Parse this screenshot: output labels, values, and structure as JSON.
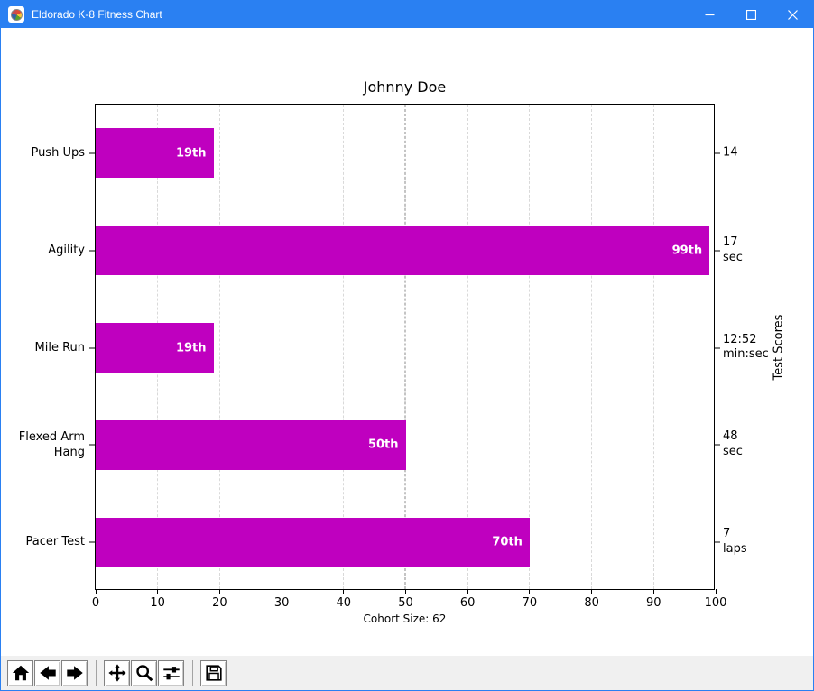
{
  "window": {
    "title": "Eldorado K-8 Fitness Chart",
    "icon": "matplotlib-logo",
    "controls": [
      {
        "name": "minimize"
      },
      {
        "name": "maximize"
      },
      {
        "name": "close"
      }
    ]
  },
  "chart_data": {
    "type": "bar",
    "orientation": "horizontal",
    "title": "Johnny Doe",
    "xlabel": "Cohort Size: 62",
    "right_axis_label": "Test Scores",
    "categories": [
      "Push Ups",
      "Agility",
      "Mile Run",
      "Flexed Arm\nHang",
      "Pacer Test"
    ],
    "values": [
      19,
      99,
      19,
      50,
      70
    ],
    "bar_labels": [
      "19th",
      "99th",
      "19th",
      "50th",
      "70th"
    ],
    "right_tick_labels": [
      "14",
      "17\nsec",
      "12:52\nmin:sec",
      "48\nsec",
      "7\nlaps"
    ],
    "xlim": [
      0,
      100
    ],
    "xticks": [
      0,
      10,
      20,
      30,
      40,
      50,
      60,
      70,
      80,
      90,
      100
    ],
    "reference_line_x": 50,
    "grid": "vertical-dashed",
    "legend": "none",
    "colors": {
      "bar": "#bf00bf",
      "bar_label": "#ffffff",
      "grid": "#d9d9d9",
      "reference_line": "#c4c4c4",
      "axes": "#000000"
    }
  },
  "toolbar": {
    "buttons": [
      {
        "name": "home"
      },
      {
        "name": "back"
      },
      {
        "name": "forward"
      },
      {
        "name": "pan"
      },
      {
        "name": "zoom-to-rect"
      },
      {
        "name": "configure-subplots"
      },
      {
        "name": "save"
      }
    ]
  },
  "colors": {
    "titlebar_bg": "#2a80f2",
    "titlebar_text": "#ffffff",
    "canvas_bg": "#ffffff",
    "toolbar_bg": "#f0f0f0",
    "window_border": "#2a80f2"
  }
}
